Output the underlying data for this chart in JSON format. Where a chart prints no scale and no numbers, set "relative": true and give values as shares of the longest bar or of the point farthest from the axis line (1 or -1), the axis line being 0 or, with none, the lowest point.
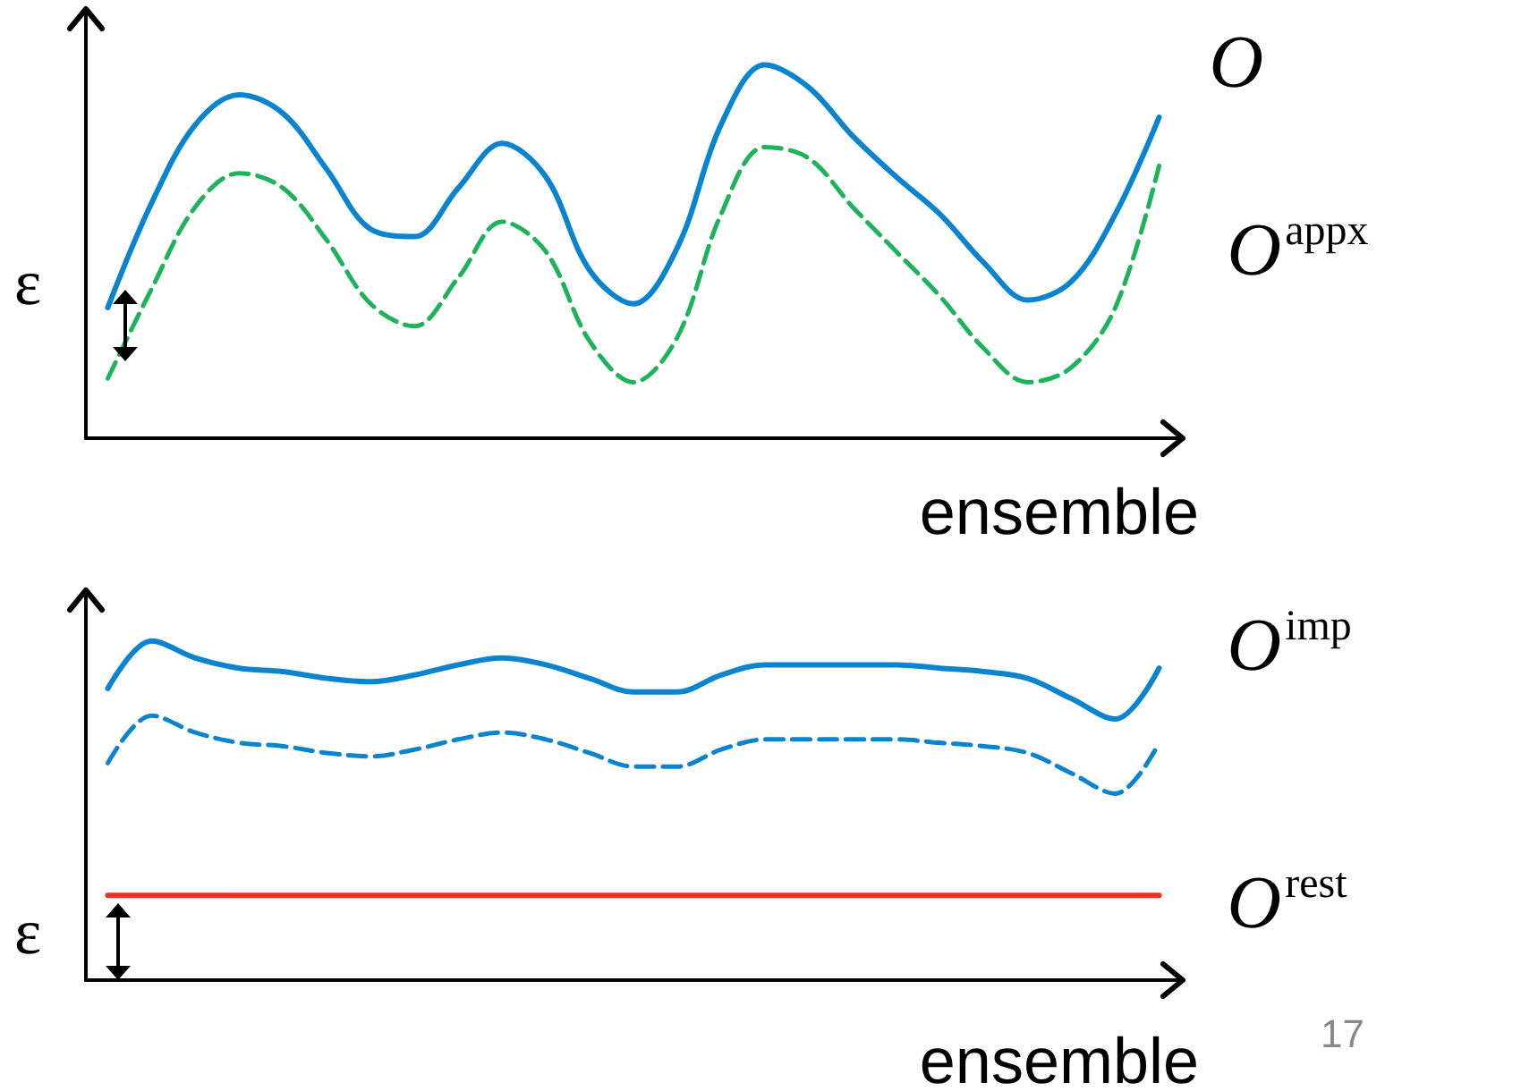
{
  "chart_data": [
    {
      "type": "line",
      "relative": true,
      "xlabel": "ensemble",
      "marker": "none",
      "annotations": [
        "ε"
      ],
      "categories": [
        null,
        null,
        null,
        null,
        null,
        null,
        null,
        null,
        null,
        null,
        null,
        null,
        null,
        null,
        null,
        null,
        null,
        null,
        null,
        null,
        null,
        null,
        null,
        null,
        null
      ],
      "series": [
        {
          "name": "O",
          "color": "#0b84d0",
          "line_style": "solid",
          "values": [
            0.35,
            0.63,
            0.84,
            0.92,
            0.87,
            0.72,
            0.56,
            0.54,
            0.67,
            0.79,
            0.7,
            0.45,
            0.36,
            0.51,
            0.84,
            1.0,
            0.94,
            0.81,
            0.7,
            0.6,
            0.47,
            0.37,
            0.42,
            0.6,
            0.86
          ]
        },
        {
          "name": "O$^{appx}$",
          "color": "#1db35a",
          "line_style": "dashed",
          "values": [
            0.16,
            0.4,
            0.62,
            0.71,
            0.67,
            0.53,
            0.36,
            0.3,
            0.43,
            0.58,
            0.5,
            0.26,
            0.15,
            0.27,
            0.6,
            0.78,
            0.75,
            0.62,
            0.5,
            0.38,
            0.24,
            0.15,
            0.19,
            0.35,
            0.73
          ]
        }
      ]
    },
    {
      "type": "line",
      "relative": true,
      "xlabel": "ensemble",
      "marker": "none",
      "annotations": [
        "ε",
        "17"
      ],
      "categories": [
        null,
        null,
        null,
        null,
        null,
        null,
        null,
        null,
        null,
        null,
        null,
        null,
        null,
        null,
        null,
        null,
        null,
        null,
        null,
        null,
        null,
        null,
        null,
        null,
        null
      ],
      "series": [
        {
          "name": "O$^{imp}$",
          "color": "#0b84d0",
          "line_style": "solid",
          "values": [
            0.86,
            1.0,
            0.95,
            0.92,
            0.91,
            0.89,
            0.88,
            0.9,
            0.93,
            0.95,
            0.93,
            0.89,
            0.85,
            0.85,
            0.9,
            0.93,
            0.93,
            0.93,
            0.93,
            0.92,
            0.91,
            0.89,
            0.83,
            0.77,
            0.92
          ]
        },
        {
          "color": "#0b84d0",
          "line_style": "dashed",
          "values": [
            0.64,
            0.78,
            0.73,
            0.7,
            0.69,
            0.67,
            0.66,
            0.68,
            0.71,
            0.73,
            0.71,
            0.67,
            0.63,
            0.63,
            0.68,
            0.71,
            0.71,
            0.71,
            0.71,
            0.7,
            0.69,
            0.67,
            0.61,
            0.55,
            0.7
          ]
        },
        {
          "name": "O$^{rest}$",
          "color": "#e8321e",
          "line_style": "solid",
          "values": [
            0.25,
            0.25,
            0.25,
            0.25,
            0.25,
            0.25,
            0.25,
            0.25,
            0.25,
            0.25,
            0.25,
            0.25,
            0.25,
            0.25,
            0.25,
            0.25,
            0.25,
            0.25,
            0.25,
            0.25,
            0.25,
            0.25,
            0.25,
            0.25,
            0.25
          ]
        }
      ]
    }
  ]
}
